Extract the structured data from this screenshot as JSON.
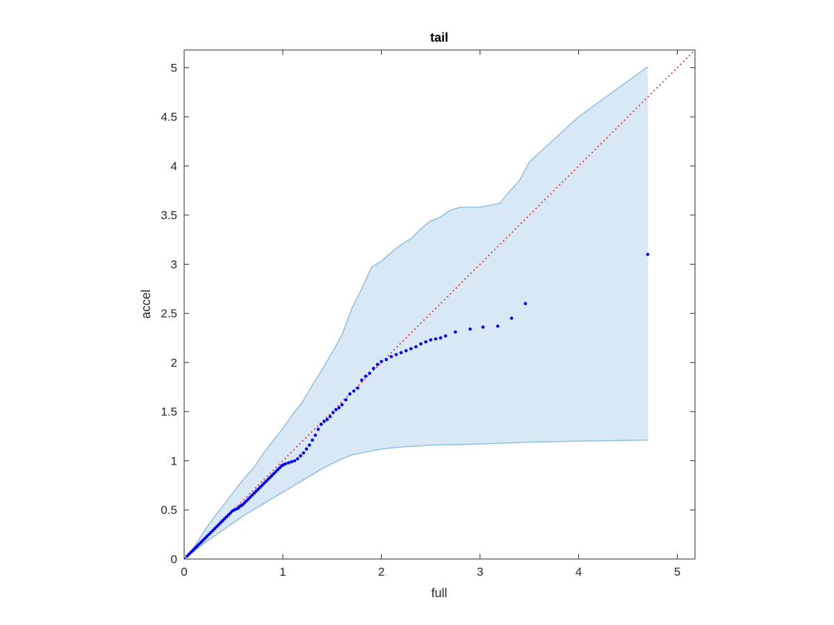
{
  "chart_data": {
    "type": "scatter",
    "title": "tail",
    "xlabel": "full",
    "ylabel": "accel",
    "xlim": [
      0,
      5.18
    ],
    "ylim": [
      0,
      5.18
    ],
    "grid": false,
    "xticks": [
      "0",
      "1",
      "2",
      "3",
      "4",
      "5"
    ],
    "yticks": [
      "0",
      "0.5",
      "1",
      "1.5",
      "2",
      "2.5",
      "3",
      "3.5",
      "4",
      "4.5",
      "5"
    ],
    "colors": {
      "band_fill": "#d8e8f4",
      "band_edge": "#8dbfe0",
      "points": "#0000ff",
      "reference_line": "#ff0000",
      "axes": "#262626"
    },
    "reference_line": {
      "style": "dotted",
      "points": [
        [
          0,
          0
        ],
        [
          5.18,
          5.18
        ]
      ]
    },
    "band_upper": [
      [
        0,
        0
      ],
      [
        0.1,
        0.12
      ],
      [
        0.2,
        0.28
      ],
      [
        0.3,
        0.42
      ],
      [
        0.4,
        0.55
      ],
      [
        0.5,
        0.68
      ],
      [
        0.6,
        0.81
      ],
      [
        0.7,
        0.92
      ],
      [
        0.8,
        1.07
      ],
      [
        0.9,
        1.2
      ],
      [
        1.0,
        1.33
      ],
      [
        1.1,
        1.47
      ],
      [
        1.2,
        1.6
      ],
      [
        1.3,
        1.77
      ],
      [
        1.4,
        1.93
      ],
      [
        1.5,
        2.1
      ],
      [
        1.6,
        2.28
      ],
      [
        1.7,
        2.55
      ],
      [
        1.8,
        2.75
      ],
      [
        1.9,
        2.97
      ],
      [
        2.0,
        3.03
      ],
      [
        2.1,
        3.12
      ],
      [
        2.2,
        3.2
      ],
      [
        2.3,
        3.26
      ],
      [
        2.4,
        3.36
      ],
      [
        2.5,
        3.44
      ],
      [
        2.6,
        3.48
      ],
      [
        2.7,
        3.55
      ],
      [
        2.8,
        3.58
      ],
      [
        2.9,
        3.58
      ],
      [
        3.0,
        3.58
      ],
      [
        3.1,
        3.6
      ],
      [
        3.2,
        3.62
      ],
      [
        3.3,
        3.74
      ],
      [
        3.4,
        3.85
      ],
      [
        3.5,
        4.04
      ],
      [
        4.0,
        4.5
      ],
      [
        4.7,
        5.01
      ]
    ],
    "band_lower": [
      [
        0,
        0
      ],
      [
        0.2,
        0.16
      ],
      [
        0.4,
        0.3
      ],
      [
        0.6,
        0.44
      ],
      [
        0.8,
        0.56
      ],
      [
        1.0,
        0.68
      ],
      [
        1.1,
        0.74
      ],
      [
        1.2,
        0.8
      ],
      [
        1.3,
        0.86
      ],
      [
        1.4,
        0.92
      ],
      [
        1.5,
        0.97
      ],
      [
        1.6,
        1.02
      ],
      [
        1.7,
        1.06
      ],
      [
        1.8,
        1.08
      ],
      [
        1.9,
        1.1
      ],
      [
        2.0,
        1.12
      ],
      [
        2.2,
        1.14
      ],
      [
        2.5,
        1.16
      ],
      [
        3.0,
        1.17
      ],
      [
        3.5,
        1.19
      ],
      [
        4.0,
        1.2
      ],
      [
        4.7,
        1.21
      ]
    ],
    "points": [
      [
        0,
        0
      ],
      [
        0.03,
        0.03
      ],
      [
        0.05,
        0.05
      ],
      [
        0.07,
        0.07
      ],
      [
        0.09,
        0.09
      ],
      [
        0.11,
        0.11
      ],
      [
        0.13,
        0.13
      ],
      [
        0.15,
        0.15
      ],
      [
        0.17,
        0.17
      ],
      [
        0.19,
        0.19
      ],
      [
        0.21,
        0.21
      ],
      [
        0.23,
        0.23
      ],
      [
        0.25,
        0.25
      ],
      [
        0.27,
        0.27
      ],
      [
        0.29,
        0.29
      ],
      [
        0.31,
        0.31
      ],
      [
        0.33,
        0.33
      ],
      [
        0.35,
        0.35
      ],
      [
        0.37,
        0.37
      ],
      [
        0.39,
        0.39
      ],
      [
        0.41,
        0.41
      ],
      [
        0.43,
        0.43
      ],
      [
        0.45,
        0.45
      ],
      [
        0.47,
        0.47
      ],
      [
        0.49,
        0.49
      ],
      [
        0.51,
        0.5
      ],
      [
        0.53,
        0.51
      ],
      [
        0.55,
        0.52
      ],
      [
        0.57,
        0.54
      ],
      [
        0.59,
        0.55
      ],
      [
        0.61,
        0.57
      ],
      [
        0.63,
        0.59
      ],
      [
        0.65,
        0.61
      ],
      [
        0.67,
        0.63
      ],
      [
        0.69,
        0.65
      ],
      [
        0.71,
        0.67
      ],
      [
        0.73,
        0.69
      ],
      [
        0.75,
        0.71
      ],
      [
        0.77,
        0.73
      ],
      [
        0.79,
        0.75
      ],
      [
        0.81,
        0.77
      ],
      [
        0.83,
        0.79
      ],
      [
        0.85,
        0.81
      ],
      [
        0.87,
        0.83
      ],
      [
        0.89,
        0.85
      ],
      [
        0.91,
        0.87
      ],
      [
        0.93,
        0.89
      ],
      [
        0.95,
        0.91
      ],
      [
        0.97,
        0.93
      ],
      [
        0.99,
        0.95
      ],
      [
        1.01,
        0.96
      ],
      [
        1.03,
        0.97
      ],
      [
        1.06,
        0.98
      ],
      [
        1.09,
        0.99
      ],
      [
        1.12,
        1.0
      ],
      [
        1.15,
        1.02
      ],
      [
        1.18,
        1.05
      ],
      [
        1.21,
        1.08
      ],
      [
        1.24,
        1.12
      ],
      [
        1.27,
        1.16
      ],
      [
        1.3,
        1.21
      ],
      [
        1.33,
        1.26
      ],
      [
        1.36,
        1.32
      ],
      [
        1.39,
        1.37
      ],
      [
        1.42,
        1.4
      ],
      [
        1.45,
        1.42
      ],
      [
        1.48,
        1.45
      ],
      [
        1.51,
        1.49
      ],
      [
        1.54,
        1.52
      ],
      [
        1.57,
        1.54
      ],
      [
        1.6,
        1.57
      ],
      [
        1.64,
        1.62
      ],
      [
        1.68,
        1.68
      ],
      [
        1.72,
        1.71
      ],
      [
        1.76,
        1.74
      ],
      [
        1.8,
        1.82
      ],
      [
        1.84,
        1.86
      ],
      [
        1.88,
        1.89
      ],
      [
        1.92,
        1.94
      ],
      [
        1.96,
        1.98
      ],
      [
        2.0,
        2.01
      ],
      [
        2.05,
        2.03
      ],
      [
        2.1,
        2.06
      ],
      [
        2.15,
        2.08
      ],
      [
        2.2,
        2.1
      ],
      [
        2.25,
        2.12
      ],
      [
        2.3,
        2.14
      ],
      [
        2.35,
        2.16
      ],
      [
        2.4,
        2.19
      ],
      [
        2.45,
        2.21
      ],
      [
        2.5,
        2.23
      ],
      [
        2.55,
        2.24
      ],
      [
        2.6,
        2.25
      ],
      [
        2.65,
        2.27
      ],
      [
        2.75,
        2.31
      ],
      [
        2.9,
        2.34
      ],
      [
        3.03,
        2.36
      ],
      [
        3.18,
        2.37
      ],
      [
        3.32,
        2.45
      ],
      [
        3.46,
        2.6
      ],
      [
        4.7,
        3.1
      ]
    ]
  }
}
